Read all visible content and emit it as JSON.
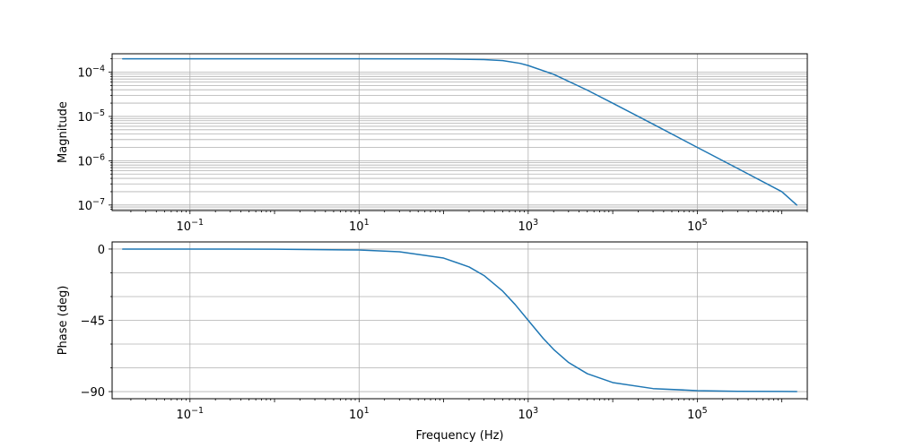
{
  "chart_data": [
    {
      "type": "line",
      "panel": "magnitude",
      "title": "",
      "xlabel": "",
      "ylabel": "Magnitude",
      "xscale": "log",
      "yscale": "log",
      "xlim": [
        0.012,
        2000000
      ],
      "ylim": [
        7.5e-08,
        0.00026
      ],
      "grid": true,
      "grid_minor_y": true,
      "x_ticks": [
        {
          "value": 0.1,
          "base": "10",
          "exp": "−1"
        },
        {
          "value": 10,
          "base": "10",
          "exp": "1"
        },
        {
          "value": 1000,
          "base": "10",
          "exp": "3"
        },
        {
          "value": 100000,
          "base": "10",
          "exp": "5"
        }
      ],
      "y_ticks": [
        {
          "value": 0.0001,
          "base": "10",
          "exp": "−4"
        },
        {
          "value": 1e-05,
          "base": "10",
          "exp": "−5"
        },
        {
          "value": 1e-06,
          "base": "10",
          "exp": "−6"
        },
        {
          "value": 1e-07,
          "base": "10",
          "exp": "−7"
        }
      ],
      "series": [
        {
          "color": "#1f77b4",
          "x": [
            0.016,
            0.1,
            1,
            10,
            100,
            300,
            500,
            800,
            1000,
            2000,
            5000,
            10000,
            30000,
            100000,
            300000,
            1000000,
            1500000
          ],
          "y": [
            0.0002,
            0.0002,
            0.0002,
            0.0002,
            0.000199,
            0.000192,
            0.000182,
            0.000158,
            0.000141,
            8.94e-05,
            3.92e-05,
            1.99e-05,
            6.7e-06,
            2e-06,
            6.7e-07,
            2e-07,
            1e-07
          ]
        }
      ]
    },
    {
      "type": "line",
      "panel": "phase",
      "title": "",
      "xlabel": "Frequency (Hz)",
      "ylabel": "Phase (deg)",
      "xscale": "log",
      "yscale": "linear",
      "xlim": [
        0.012,
        2000000
      ],
      "ylim": [
        -94.5,
        4.5
      ],
      "grid": true,
      "x_ticks": [
        {
          "value": 0.1,
          "base": "10",
          "exp": "−1"
        },
        {
          "value": 10,
          "base": "10",
          "exp": "1"
        },
        {
          "value": 1000,
          "base": "10",
          "exp": "3"
        },
        {
          "value": 100000,
          "base": "10",
          "exp": "5"
        }
      ],
      "y_ticks": [
        {
          "value": 0,
          "label": "0"
        },
        {
          "value": -45,
          "label": "−45"
        },
        {
          "value": -90,
          "label": "−90"
        }
      ],
      "y_grid_values": [
        0,
        -15,
        -30,
        -45,
        -60,
        -75,
        -90
      ],
      "series": [
        {
          "color": "#1f77b4",
          "x": [
            0.016,
            0.1,
            1,
            10,
            30,
            100,
            200,
            300,
            500,
            700,
            1000,
            1500,
            2000,
            3000,
            5000,
            10000,
            30000,
            100000,
            300000,
            1000000,
            1500000
          ],
          "y": [
            0,
            0,
            -0.1,
            -0.6,
            -1.7,
            -5.7,
            -11.3,
            -16.7,
            -26.6,
            -35,
            -45,
            -56.3,
            -63.4,
            -71.6,
            -78.7,
            -84.3,
            -88.1,
            -89.4,
            -89.8,
            -89.9,
            -89.96
          ]
        }
      ]
    }
  ]
}
